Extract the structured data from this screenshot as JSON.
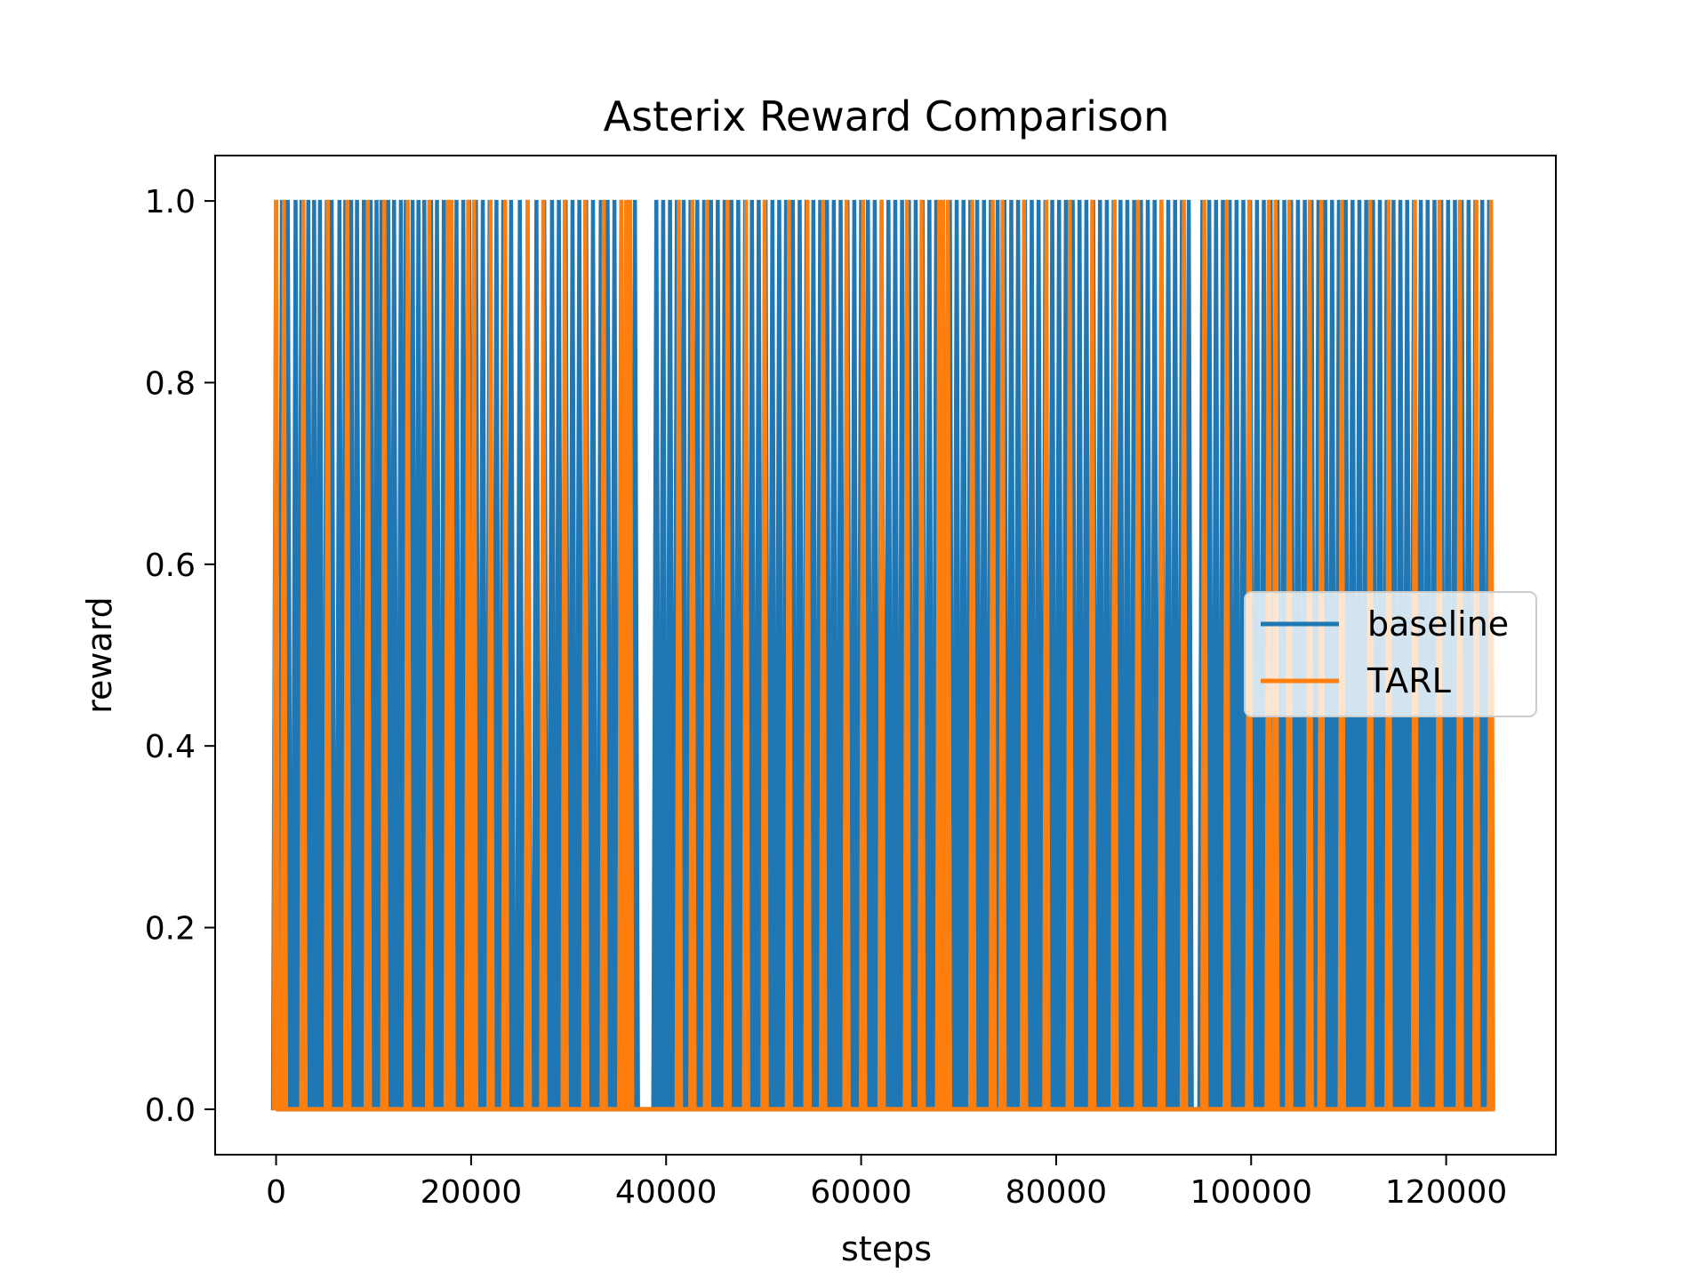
{
  "chart_data": {
    "type": "line",
    "title": "Asterix Reward Comparison",
    "xlabel": "steps",
    "ylabel": "reward",
    "xlim": [
      -6250,
      131250
    ],
    "ylim": [
      -0.05,
      1.05
    ],
    "x_ticks": [
      0,
      20000,
      40000,
      60000,
      80000,
      100000,
      120000
    ],
    "x_tick_labels": [
      "0",
      "20000",
      "40000",
      "60000",
      "80000",
      "100000",
      "120000"
    ],
    "y_ticks": [
      0.0,
      0.2,
      0.4,
      0.6,
      0.8,
      1.0
    ],
    "y_tick_labels": [
      "0.0",
      "0.2",
      "0.4",
      "0.6",
      "0.8",
      "1.0"
    ],
    "grid": false,
    "legend_position": "center-right",
    "series": [
      {
        "name": "baseline",
        "color": "#1f77b4",
        "baseline_value": 0,
        "spike_value": 1,
        "x_end": 124500,
        "spike_steps": [
          0,
          600,
          1200,
          2000,
          2600,
          3300,
          3900,
          4500,
          5200,
          5700,
          6500,
          7100,
          7700,
          8300,
          9000,
          9700,
          10300,
          10800,
          11500,
          12100,
          12800,
          13300,
          14000,
          14600,
          15200,
          15900,
          16500,
          17200,
          17900,
          18500,
          19200,
          19800,
          20500,
          21200,
          21900,
          22600,
          23300,
          24100,
          25000,
          25800,
          26700,
          27500,
          28300,
          29000,
          29700,
          30400,
          31100,
          31800,
          32500,
          33300,
          34000,
          34700,
          35400,
          36100,
          36800,
          39000,
          39700,
          40400,
          41100,
          41800,
          42500,
          43200,
          43900,
          44600,
          45300,
          46000,
          46700,
          47400,
          48100,
          48800,
          49500,
          50200,
          50900,
          51600,
          52300,
          53000,
          53700,
          54400,
          55100,
          55800,
          56500,
          57200,
          57900,
          58600,
          59300,
          60000,
          60700,
          61400,
          62100,
          62800,
          63500,
          64200,
          64900,
          65600,
          66300,
          67000,
          67700,
          68400,
          69100,
          69800,
          70500,
          71200,
          71900,
          72600,
          73300,
          74000,
          74700,
          75400,
          76100,
          76800,
          77500,
          78200,
          78900,
          79600,
          80300,
          81000,
          81700,
          82400,
          83100,
          83800,
          84500,
          85200,
          85900,
          86600,
          87300,
          88000,
          88700,
          89400,
          90100,
          90800,
          91500,
          92200,
          92900,
          93600,
          95000,
          95700,
          96400,
          97100,
          97800,
          98500,
          99200,
          99900,
          100600,
          101300,
          102000,
          102700,
          103400,
          104100,
          104800,
          105500,
          106200,
          106900,
          107600,
          108300,
          109000,
          109700,
          110400,
          111100,
          111800,
          112500,
          113200,
          113900,
          114600,
          115300,
          116000,
          116700,
          117400,
          118100,
          118800,
          119500,
          120200,
          120900,
          121600,
          122300,
          123000,
          123700,
          124400
        ]
      },
      {
        "name": "TARL",
        "color": "#ff7f0e",
        "baseline_value": 0,
        "spike_value": 1,
        "x_end": 125000,
        "spike_steps": [
          0,
          800,
          2800,
          5300,
          7300,
          9400,
          11100,
          13500,
          15700,
          17600,
          18000,
          19700,
          20300,
          22000,
          23500,
          25800,
          27400,
          29600,
          31700,
          33600,
          35400,
          35900,
          36300,
          41300,
          42700,
          44200,
          46300,
          48200,
          50100,
          52600,
          54500,
          56100,
          58500,
          60200,
          62100,
          64700,
          66200,
          68000,
          68400,
          68900,
          71400,
          73500,
          74500,
          76700,
          79000,
          81400,
          83700,
          86000,
          88400,
          90800,
          93100,
          95200,
          97500,
          99800,
          101800,
          102500,
          103900,
          106000,
          107200,
          109300,
          112200,
          114100,
          116800,
          119300,
          121400,
          123100,
          124600
        ]
      }
    ]
  }
}
